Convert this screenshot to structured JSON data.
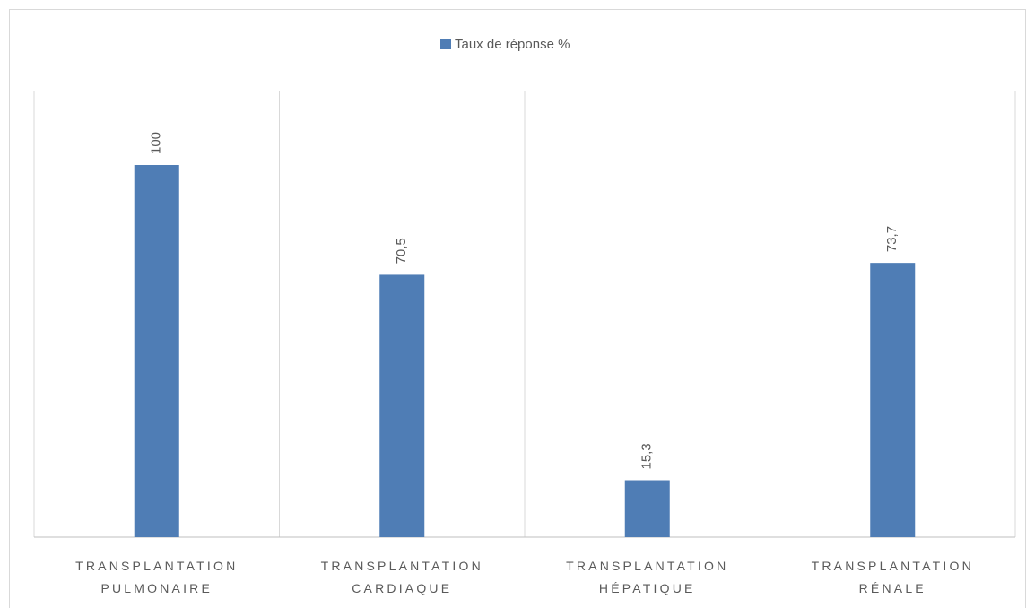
{
  "chart_data": {
    "type": "bar",
    "categories": [
      "TRANSPLANTATION PULMONAIRE",
      "TRANSPLANTATION CARDIAQUE",
      "TRANSPLANTATION HÉPATIQUE",
      "TRANSPLANTATION RÉNALE"
    ],
    "series": [
      {
        "name": "Taux de réponse %",
        "color": "#4f7db5",
        "values": [
          100,
          70.5,
          15.3,
          73.7
        ],
        "value_labels": [
          "100",
          "70,5",
          "15,3",
          "73,7"
        ]
      }
    ],
    "ylim": [
      0,
      120
    ],
    "legend": "top"
  }
}
